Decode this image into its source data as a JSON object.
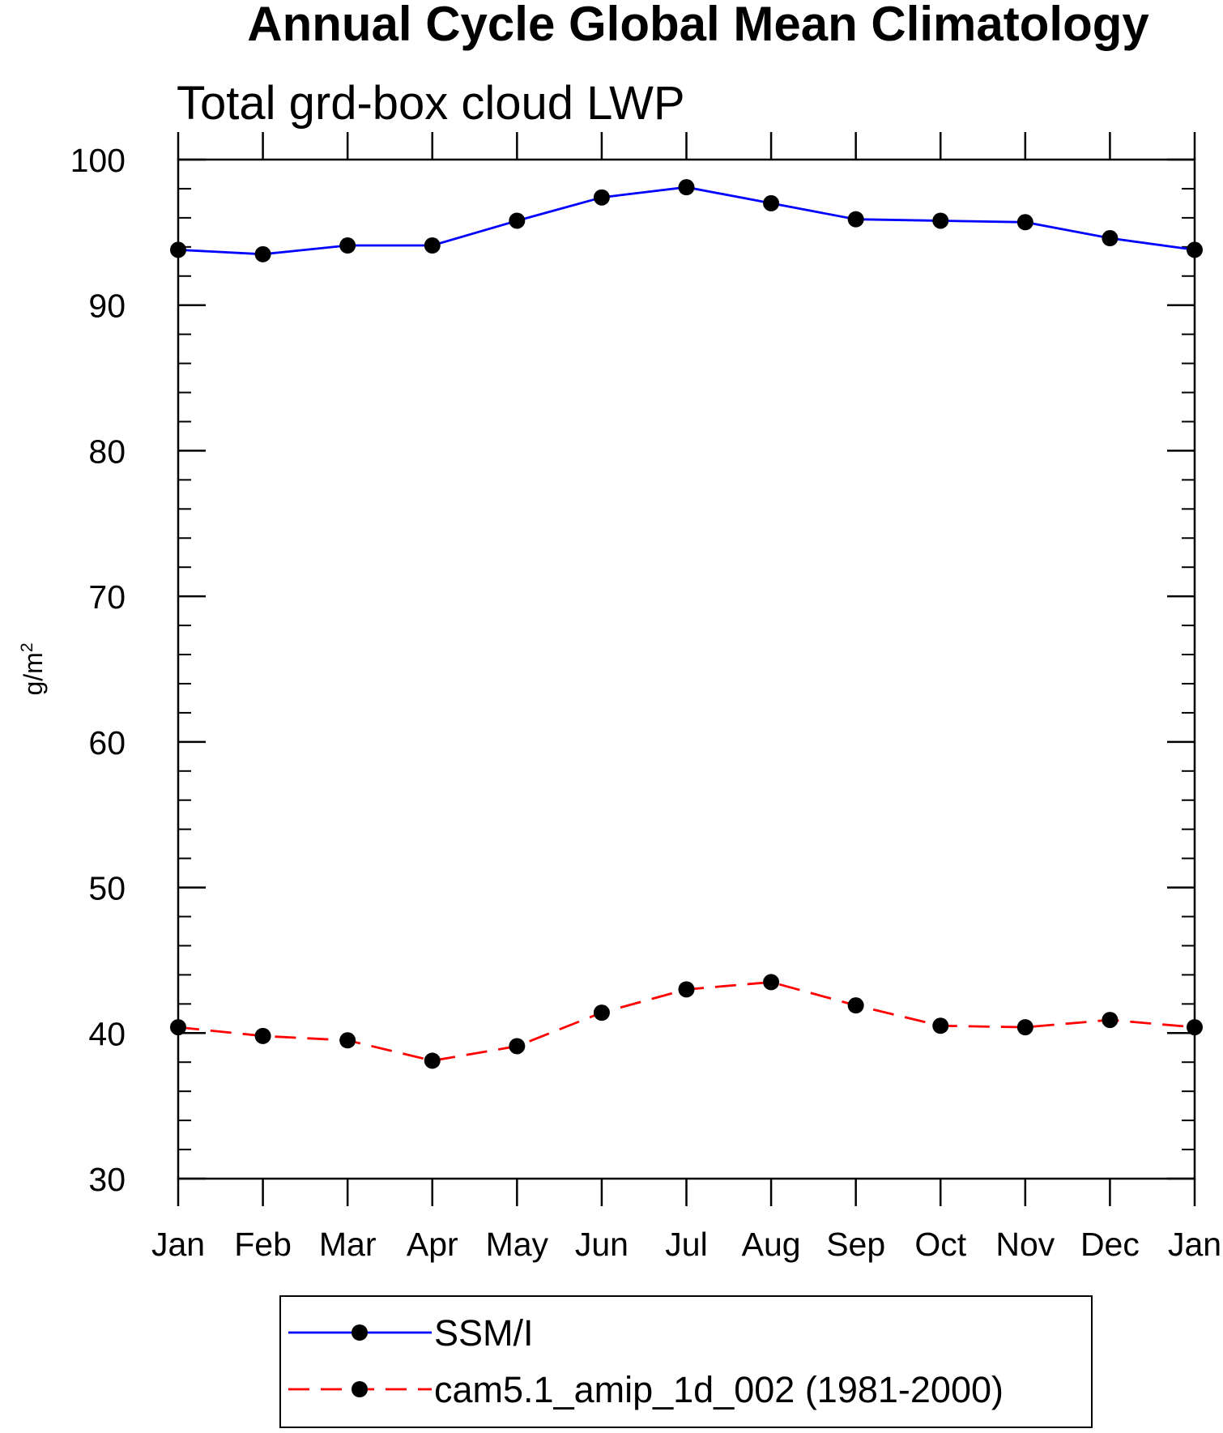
{
  "chart_data": {
    "type": "line",
    "title": "Annual Cycle Global Mean Climatology",
    "subtitle": "Total grd-box cloud LWP",
    "xlabel": "",
    "ylabel": "g/m",
    "ylabel_superscript": "2",
    "categories": [
      "Jan",
      "Feb",
      "Mar",
      "Apr",
      "May",
      "Jun",
      "Jul",
      "Aug",
      "Sep",
      "Oct",
      "Nov",
      "Dec",
      "Jan"
    ],
    "ylim": [
      30,
      100
    ],
    "yticks": [
      30,
      40,
      50,
      60,
      70,
      80,
      90,
      100
    ],
    "ytick_labels": [
      "30",
      "40",
      "50",
      "60",
      "70",
      "80",
      "90",
      "100"
    ],
    "grid": false,
    "legend_position": "bottom",
    "series": [
      {
        "name": "SSM/I",
        "color": "#0000ff",
        "dash": "solid",
        "marker": "filled-circle",
        "values": [
          93.8,
          93.5,
          94.1,
          94.1,
          95.8,
          97.4,
          98.1,
          97.0,
          95.9,
          95.8,
          95.7,
          94.6,
          93.8
        ]
      },
      {
        "name": "cam5.1_amip_1d_002 (1981-2000)",
        "color": "#ff0000",
        "dash": "dashed",
        "marker": "filled-circle",
        "values": [
          40.4,
          39.8,
          39.5,
          38.1,
          39.1,
          41.4,
          43.0,
          43.5,
          41.9,
          40.5,
          40.4,
          40.9,
          40.4
        ]
      }
    ]
  }
}
